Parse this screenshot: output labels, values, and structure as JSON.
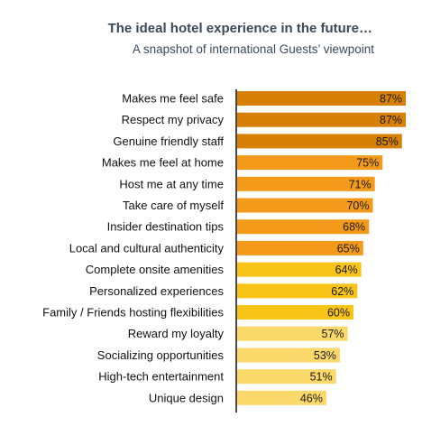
{
  "chart_data": {
    "type": "bar",
    "orientation": "horizontal",
    "title": "The ideal hotel experience in the future…",
    "subtitle": "A snapshot of international Guests’ viewpoint",
    "categories": [
      "Makes me feel safe",
      "Respect my privacy",
      "Genuine friendly staff",
      "Makes me feel at home",
      "Host me at any time",
      "Take care of myself",
      "Insider destination tips",
      "Local and cultural authenticity",
      "Complete onsite amenities",
      "Personalized experiences",
      "Family / Friends hosting flexibilities",
      "Reward my loyalty",
      "Socializing opportunities",
      "High-tech entertainment",
      "Unique design"
    ],
    "values": [
      87,
      87,
      85,
      75,
      71,
      70,
      68,
      65,
      64,
      62,
      60,
      57,
      53,
      51,
      46
    ],
    "value_labels": [
      "87%",
      "87%",
      "85%",
      "75%",
      "71%",
      "70%",
      "68%",
      "65%",
      "64%",
      "62%",
      "60%",
      "57%",
      "53%",
      "51%",
      "46%"
    ],
    "bar_colors": [
      "#d68105",
      "#d68105",
      "#d68105",
      "#f39a1a",
      "#f39a1a",
      "#f39a1a",
      "#f39a1a",
      "#f39a1a",
      "#f8c417",
      "#f8c417",
      "#f8c417",
      "#fbd86a",
      "#fbd86a",
      "#fbd86a",
      "#fbd86a"
    ],
    "label_colors": [
      "#ffffff",
      "#ffffff",
      "#ffffff",
      "#1a1a1a",
      "#1a1a1a",
      "#1a1a1a",
      "#1a1a1a",
      "#1a1a1a",
      "#1a1a1a",
      "#1a1a1a",
      "#1a1a1a",
      "#1a1a1a",
      "#1a1a1a",
      "#1a1a1a",
      "#1a1a1a"
    ],
    "xlim": [
      0,
      100
    ],
    "grid": false
  }
}
